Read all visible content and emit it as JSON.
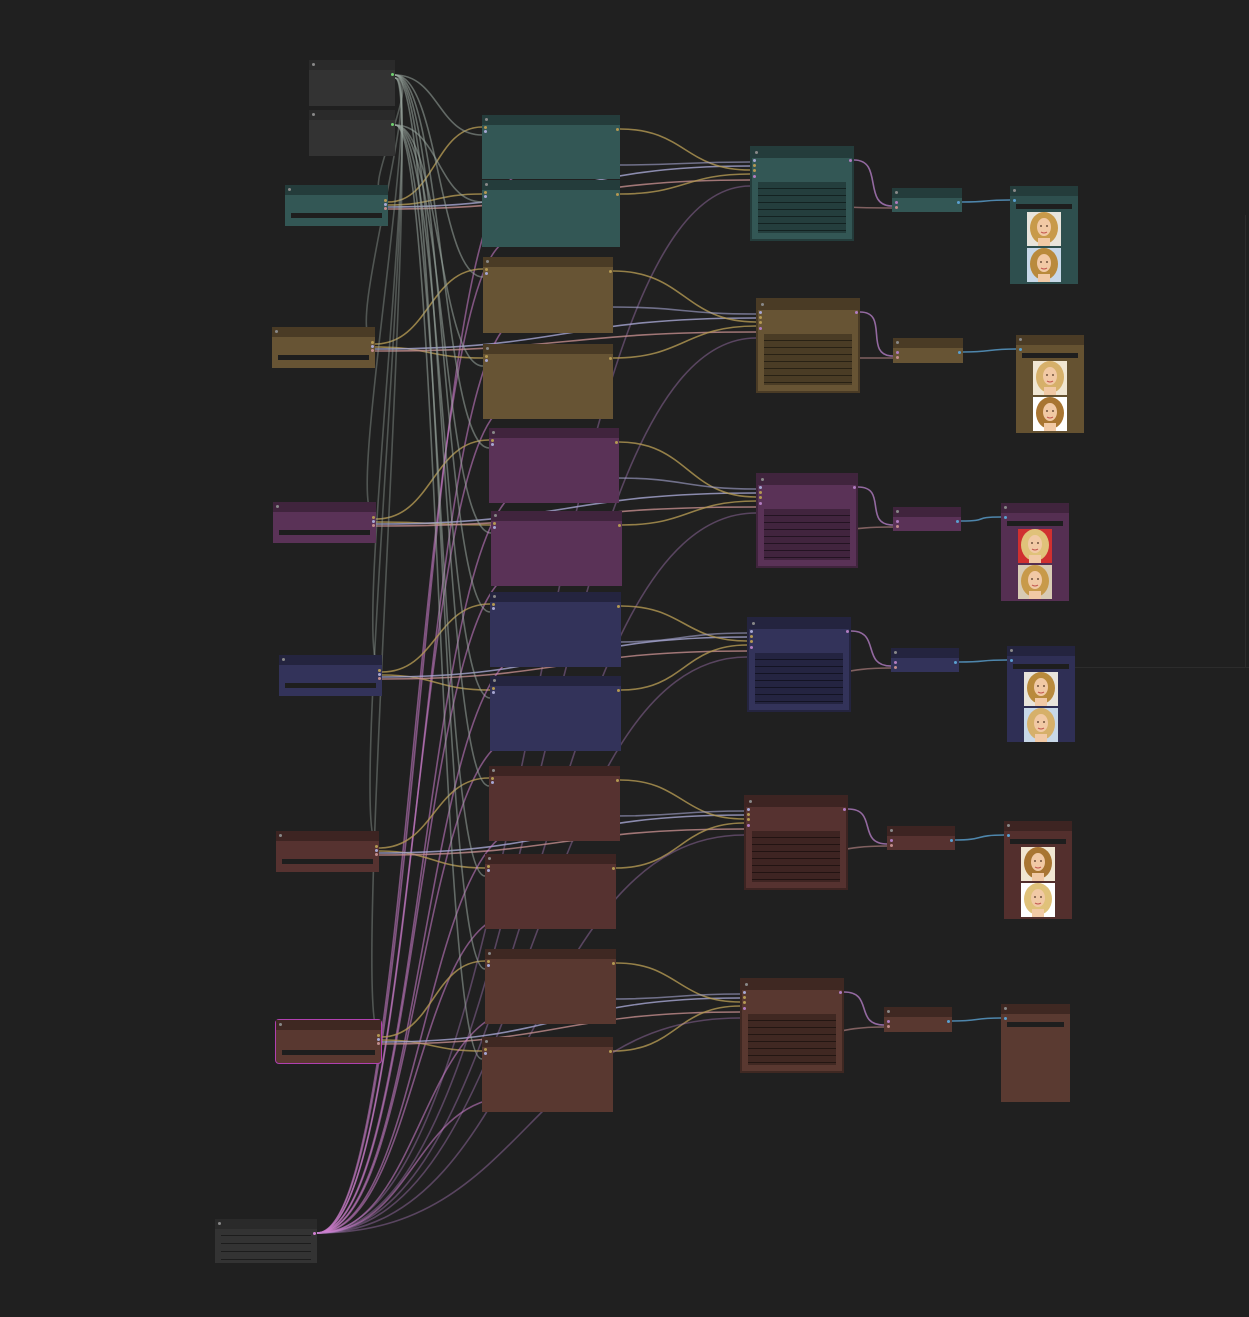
{
  "app": {
    "background": "#202020"
  },
  "groups": [
    {
      "key": "teal",
      "body": "#335755",
      "header": "#243c3b",
      "image_bg": "#2e4f4e"
    },
    {
      "key": "olive",
      "body": "#675434",
      "header": "#4a3b25",
      "image_bg": "#655231"
    },
    {
      "key": "purple",
      "body": "#5a3257",
      "header": "#40243d",
      "image_bg": "#552f52"
    },
    {
      "key": "indigo",
      "body": "#33335a",
      "header": "#24243f",
      "image_bg": "#2f2f55"
    },
    {
      "key": "brown",
      "body": "#563230",
      "header": "#3d2422",
      "image_bg": "#532f2d"
    },
    {
      "key": "rust",
      "body": "#593830",
      "header": "#3f2822",
      "image_bg": "#5a3a31"
    }
  ],
  "neutral": {
    "body": "#333333",
    "header": "#2a2a2a"
  },
  "wire_colors": {
    "model": "#b39852",
    "clip": "#a6a6d2",
    "conditioning": "#c28c8c",
    "latent": "#b07cc0",
    "vae": "#9aa8a0",
    "image": "#5aa0d0",
    "lora": "#d080d0"
  },
  "image_previews": [
    {
      "group": "teal",
      "count": 2,
      "subject": "portrait-thumbnail"
    },
    {
      "group": "olive",
      "count": 2,
      "subject": "portrait-thumbnail"
    },
    {
      "group": "purple",
      "count": 2,
      "subject": "portrait-thumbnail"
    },
    {
      "group": "indigo",
      "count": 2,
      "subject": "portrait-thumbnail"
    },
    {
      "group": "brown",
      "count": 2,
      "subject": "portrait-thumbnail"
    },
    {
      "group": "rust",
      "count": 0,
      "subject": ""
    }
  ]
}
